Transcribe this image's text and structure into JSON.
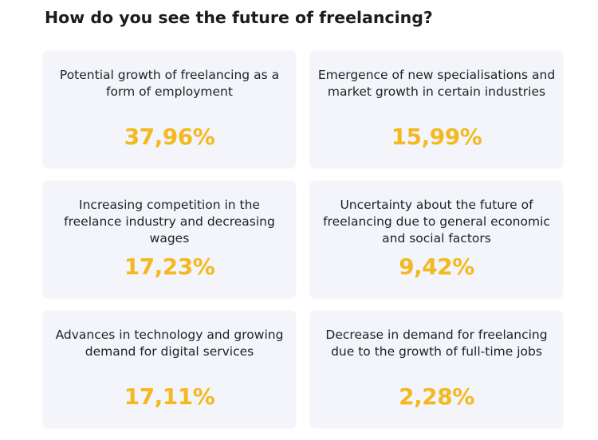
{
  "colors": {
    "background": "#ffffff",
    "card": "#f3f5fb",
    "text": "#222222",
    "value": "#f4b920"
  },
  "chart_data": {
    "type": "table",
    "title": "How do you see the future of freelancing?",
    "items": [
      {
        "label": "Potential growth of freelancing as a form of employment",
        "value": 37.96,
        "display": "37,96%"
      },
      {
        "label": "Emergence of new specialisations and market growth in certain industries",
        "value": 15.99,
        "display": "15,99%"
      },
      {
        "label": "Increasing competition in the freelance industry and decreasing wages",
        "value": 17.23,
        "display": "17,23%"
      },
      {
        "label": "Uncertainty about the future of freelancing due to general economic and social factors",
        "value": 9.42,
        "display": "9,42%"
      },
      {
        "label": "Advances in technology and growing demand for digital services",
        "value": 17.11,
        "display": "17,11%"
      },
      {
        "label": "Decrease in demand for freelancing due to the growth of full-time jobs",
        "value": 2.28,
        "display": "2,28%"
      }
    ]
  }
}
